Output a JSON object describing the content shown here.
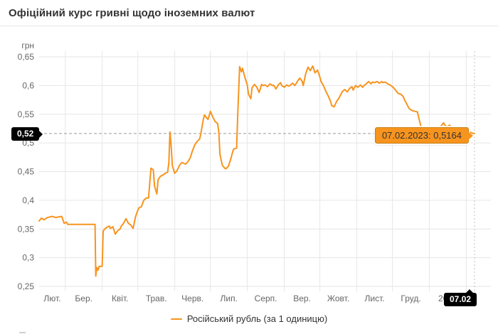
{
  "page": {
    "title": "Офіційний курс гривні щодо іноземних валют"
  },
  "legend": {
    "label": "Російський рубль (за 1 одиницю)"
  },
  "tooltips": {
    "point": {
      "label": "07.02.2023: 0,5164",
      "date": "07.02.2023",
      "value": "0,5164"
    },
    "y_axis_label": "0,52",
    "x_axis_label": "07.02"
  },
  "colors": {
    "line": "#f7941e",
    "tooltip_bg": "#f7941e",
    "tooltip_border": "#c97e12",
    "grid": "#e6e6e6",
    "axis_label": "#666666",
    "crosshair_dash": "#9a9a9a",
    "crosshair_dot": "#c0c0c0",
    "black_label_bg": "#000000",
    "black_label_text": "#ffffff",
    "title_text": "#333333"
  },
  "chart_data": {
    "type": "line",
    "title": "Офіційний курс гривні щодо іноземних валют",
    "grid": true,
    "legend_position": "bottom",
    "series_name": "Російський рубль (за 1 одиницю)",
    "x_axis": {
      "start_date": "07.02.2022",
      "end_date": "07.02.2023",
      "total_days": 366,
      "month_labels": [
        "Лют.",
        "Бер.",
        "Квіт.",
        "Трав.",
        "Черв.",
        "Лип.",
        "Серп.",
        "Вер.",
        "Жовт.",
        "Лист.",
        "Груд."
      ],
      "year_label": "2023",
      "month_start_days": [
        22,
        53,
        83,
        114,
        144,
        175,
        206,
        236,
        267,
        297,
        328,
        359
      ]
    },
    "y_axis": {
      "unit_label": "грн",
      "min": 0.25,
      "max": 0.65,
      "tick_step": 0.05,
      "tick_labels": [
        "0,25",
        "0,3",
        "0,35",
        "0,4",
        "0,45",
        "0,5",
        "0,55",
        "0,6",
        "0,65"
      ]
    },
    "hover_point": {
      "day": 366,
      "value": 0.5164,
      "date": "07.02.2023"
    },
    "points": [
      [
        0,
        0.364
      ],
      [
        2,
        0.369
      ],
      [
        4,
        0.366
      ],
      [
        7,
        0.37
      ],
      [
        9,
        0.371
      ],
      [
        11,
        0.372
      ],
      [
        14,
        0.37
      ],
      [
        16,
        0.371
      ],
      [
        19,
        0.372
      ],
      [
        21,
        0.36
      ],
      [
        23,
        0.362
      ],
      [
        24,
        0.358
      ],
      [
        30,
        0.358
      ],
      [
        36,
        0.358
      ],
      [
        42,
        0.358
      ],
      [
        47,
        0.358
      ],
      [
        47.6,
        0.268
      ],
      [
        48.5,
        0.283
      ],
      [
        49.5,
        0.278
      ],
      [
        50.5,
        0.285
      ],
      [
        53,
        0.285
      ],
      [
        53.3,
        0.305
      ],
      [
        53.8,
        0.346
      ],
      [
        55,
        0.35
      ],
      [
        57,
        0.353
      ],
      [
        59,
        0.355
      ],
      [
        60,
        0.351
      ],
      [
        62,
        0.354
      ],
      [
        64,
        0.341
      ],
      [
        66,
        0.347
      ],
      [
        68,
        0.35
      ],
      [
        69,
        0.355
      ],
      [
        71,
        0.36
      ],
      [
        73,
        0.368
      ],
      [
        75,
        0.36
      ],
      [
        77,
        0.357
      ],
      [
        79,
        0.351
      ],
      [
        81,
        0.371
      ],
      [
        83,
        0.383
      ],
      [
        84,
        0.387
      ],
      [
        86,
        0.389
      ],
      [
        88,
        0.4
      ],
      [
        90,
        0.404
      ],
      [
        92,
        0.404
      ],
      [
        93,
        0.43
      ],
      [
        94,
        0.456
      ],
      [
        96,
        0.453
      ],
      [
        97,
        0.425
      ],
      [
        99,
        0.411
      ],
      [
        100,
        0.436
      ],
      [
        102,
        0.442
      ],
      [
        104,
        0.444
      ],
      [
        106,
        0.447
      ],
      [
        108,
        0.449
      ],
      [
        109,
        0.465
      ],
      [
        110,
        0.519
      ],
      [
        111,
        0.495
      ],
      [
        112,
        0.46
      ],
      [
        114,
        0.447
      ],
      [
        116,
        0.452
      ],
      [
        118,
        0.461
      ],
      [
        120,
        0.466
      ],
      [
        123,
        0.463
      ],
      [
        125,
        0.467
      ],
      [
        127,
        0.474
      ],
      [
        129,
        0.487
      ],
      [
        131,
        0.497
      ],
      [
        133,
        0.503
      ],
      [
        135,
        0.507
      ],
      [
        136,
        0.517
      ],
      [
        138,
        0.541
      ],
      [
        139,
        0.549
      ],
      [
        141,
        0.543
      ],
      [
        142,
        0.541
      ],
      [
        144,
        0.555
      ],
      [
        146,
        0.545
      ],
      [
        148,
        0.537
      ],
      [
        150,
        0.534
      ],
      [
        151,
        0.52
      ],
      [
        152,
        0.48
      ],
      [
        154,
        0.461
      ],
      [
        156,
        0.456
      ],
      [
        157,
        0.455
      ],
      [
        159,
        0.459
      ],
      [
        161,
        0.471
      ],
      [
        163,
        0.487
      ],
      [
        164,
        0.49
      ],
      [
        166,
        0.491
      ],
      [
        167,
        0.55
      ],
      [
        168.5,
        0.633
      ],
      [
        170,
        0.624
      ],
      [
        171,
        0.63
      ],
      [
        173,
        0.614
      ],
      [
        175,
        0.601
      ],
      [
        176,
        0.585
      ],
      [
        178,
        0.577
      ],
      [
        179,
        0.596
      ],
      [
        181,
        0.602
      ],
      [
        183,
        0.597
      ],
      [
        185,
        0.588
      ],
      [
        187,
        0.602
      ],
      [
        188,
        0.6
      ],
      [
        190,
        0.601
      ],
      [
        192,
        0.598
      ],
      [
        194,
        0.603
      ],
      [
        196,
        0.6
      ],
      [
        197,
        0.601
      ],
      [
        199,
        0.594
      ],
      [
        201,
        0.601
      ],
      [
        203,
        0.605
      ],
      [
        204,
        0.6
      ],
      [
        206,
        0.597
      ],
      [
        208,
        0.601
      ],
      [
        210,
        0.599
      ],
      [
        212,
        0.602
      ],
      [
        213,
        0.604
      ],
      [
        215,
        0.6
      ],
      [
        217,
        0.607
      ],
      [
        219,
        0.613
      ],
      [
        221,
        0.608
      ],
      [
        222,
        0.6
      ],
      [
        224,
        0.62
      ],
      [
        226,
        0.632
      ],
      [
        228,
        0.626
      ],
      [
        230,
        0.634
      ],
      [
        232,
        0.622
      ],
      [
        234,
        0.627
      ],
      [
        236,
        0.615
      ],
      [
        237,
        0.607
      ],
      [
        239,
        0.6
      ],
      [
        241,
        0.59
      ],
      [
        243,
        0.582
      ],
      [
        245,
        0.572
      ],
      [
        246,
        0.565
      ],
      [
        248,
        0.563
      ],
      [
        250,
        0.572
      ],
      [
        252,
        0.578
      ],
      [
        254,
        0.586
      ],
      [
        255,
        0.59
      ],
      [
        257,
        0.593
      ],
      [
        259,
        0.589
      ],
      [
        261,
        0.595
      ],
      [
        263,
        0.598
      ],
      [
        264,
        0.592
      ],
      [
        266,
        0.6
      ],
      [
        268,
        0.597
      ],
      [
        270,
        0.601
      ],
      [
        272,
        0.597
      ],
      [
        273,
        0.6
      ],
      [
        275,
        0.603
      ],
      [
        277,
        0.607
      ],
      [
        279,
        0.603
      ],
      [
        280,
        0.606
      ],
      [
        282,
        0.605
      ],
      [
        284,
        0.607
      ],
      [
        286,
        0.604
      ],
      [
        288,
        0.607
      ],
      [
        289,
        0.605
      ],
      [
        291,
        0.606
      ],
      [
        293,
        0.603
      ],
      [
        295,
        0.601
      ],
      [
        297,
        0.598
      ],
      [
        298,
        0.596
      ],
      [
        300,
        0.591
      ],
      [
        302,
        0.586
      ],
      [
        304,
        0.585
      ],
      [
        306,
        0.581
      ],
      [
        307,
        0.576
      ],
      [
        309,
        0.568
      ],
      [
        311,
        0.56
      ],
      [
        313,
        0.557
      ],
      [
        314,
        0.556
      ],
      [
        316,
        0.555
      ],
      [
        318,
        0.554
      ],
      [
        319,
        0.545
      ],
      [
        321,
        0.528
      ],
      [
        322,
        0.517
      ],
      [
        323,
        0.514
      ],
      [
        325,
        0.516
      ],
      [
        327,
        0.513
      ],
      [
        329,
        0.516
      ],
      [
        331,
        0.514
      ],
      [
        332,
        0.516
      ],
      [
        334,
        0.513
      ],
      [
        336,
        0.519
      ],
      [
        338,
        0.53
      ],
      [
        340,
        0.535
      ],
      [
        341,
        0.531
      ],
      [
        343,
        0.528
      ],
      [
        345,
        0.531
      ],
      [
        347,
        0.527
      ],
      [
        349,
        0.525
      ],
      [
        350,
        0.526
      ],
      [
        352,
        0.522
      ],
      [
        354,
        0.524
      ],
      [
        356,
        0.521
      ],
      [
        357,
        0.523
      ],
      [
        359,
        0.519
      ],
      [
        361,
        0.521
      ],
      [
        363,
        0.518
      ],
      [
        364,
        0.517
      ],
      [
        366,
        0.5164
      ]
    ]
  }
}
